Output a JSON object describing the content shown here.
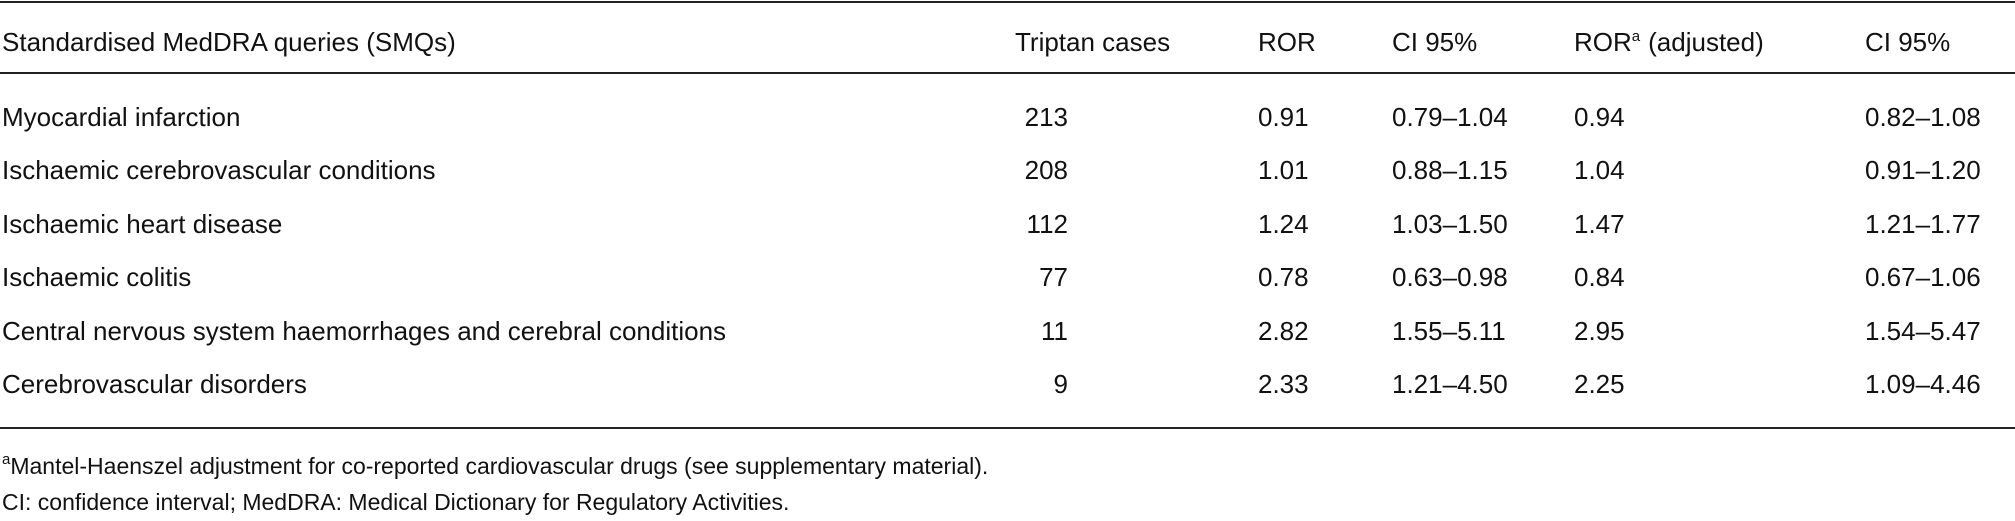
{
  "table": {
    "header": [
      "Standardised MedDRA queries (SMQs)",
      "Triptan cases",
      "ROR",
      "CI 95%",
      {
        "text": "ROR",
        "sup": "a",
        "rest": "(adjusted)"
      },
      "CI 95%"
    ],
    "rows": [
      [
        "Myocardial infarction",
        "213",
        "0.91",
        "0.79–1.04",
        "0.94",
        "0.82–1.08"
      ],
      [
        "Ischaemic cerebrovascular conditions",
        "208",
        "1.01",
        "0.88–1.15",
        "1.04",
        "0.91–1.20"
      ],
      [
        "Ischaemic heart disease",
        "112",
        "1.24",
        "1.03–1.50",
        "1.47",
        "1.21–1.77"
      ],
      [
        "Ischaemic colitis",
        "77",
        "0.78",
        "0.63–0.98",
        "0.84",
        "0.67–1.06"
      ],
      [
        "Central nervous system haemorrhages and cerebral conditions",
        "11",
        "2.82",
        "1.55–5.11",
        "2.95",
        "1.54–5.47"
      ],
      [
        "Cerebrovascular disorders",
        "9",
        "2.33",
        "1.21–4.50",
        "2.25",
        "1.09–4.46"
      ]
    ]
  },
  "footnotes": [
    {
      "sup": "a",
      "text": "Mantel-Haenszel adjustment for co-reported cardiovascular drugs (see supplementary material)."
    },
    {
      "text": "CI: confidence interval; MedDRA: Medical Dictionary for Regulatory Activities."
    }
  ]
}
